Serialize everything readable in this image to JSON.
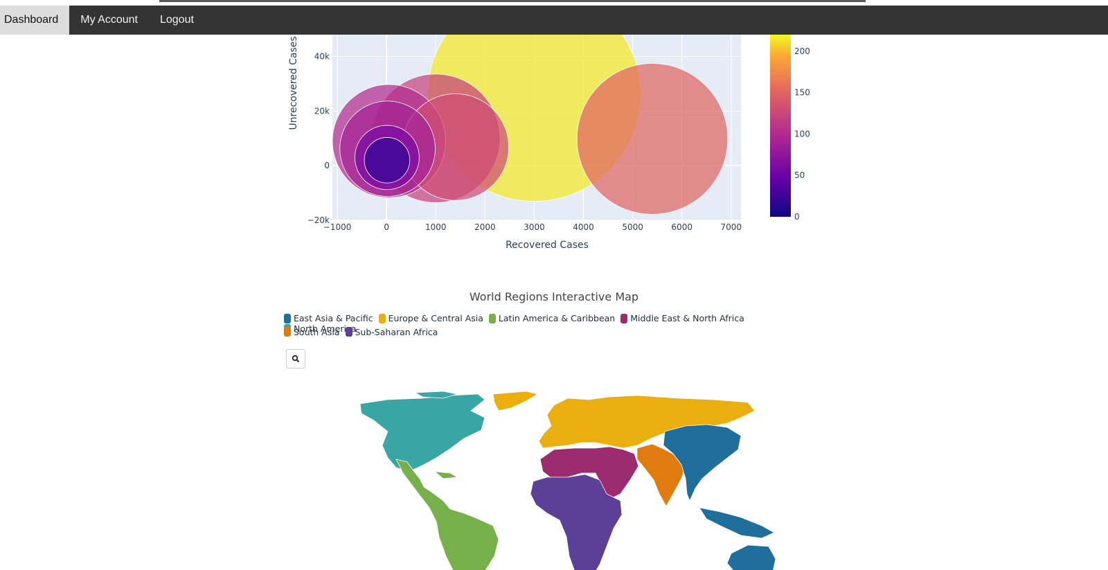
{
  "nav": {
    "items": [
      {
        "label": "Dashboard",
        "active": true
      },
      {
        "label": "My Account",
        "active": false
      },
      {
        "label": "Logout",
        "active": false
      }
    ]
  },
  "colors": {
    "plot_bg": "#e5ecf6",
    "nav_bg": "#333333",
    "regions": {
      "east_asia_pacific": "#1f6e9b",
      "europe_central_asia": "#eaae0f",
      "latin_america_caribbean": "#76b04a",
      "middle_east_north_africa": "#9c2a6e",
      "north_america": "#3aa5a5",
      "south_asia": "#e07b10",
      "sub_saharan_africa": "#5c3f96"
    }
  },
  "chart_data": {
    "type": "scatter",
    "subtype": "bubble",
    "xlabel": "Recovered Cases",
    "ylabel": "Unrecovered Cases",
    "xlim": [
      -1100,
      7200
    ],
    "ylim": [
      -20000,
      48000
    ],
    "x_ticks": [
      -1000,
      0,
      1000,
      2000,
      3000,
      4000,
      5000,
      6000,
      7000
    ],
    "x_tick_labels": [
      "−1000",
      "0",
      "1000",
      "2000",
      "3000",
      "4000",
      "5000",
      "6000",
      "7000"
    ],
    "y_ticks": [
      -20000,
      0,
      20000,
      40000
    ],
    "y_tick_labels": [
      "−20k",
      "0",
      "20k",
      "40k"
    ],
    "grid": true,
    "colorbar": {
      "min": 0,
      "max": 220,
      "ticks": [
        0,
        50,
        100,
        150,
        200
      ],
      "tick_labels": [
        "0",
        "50",
        "100",
        "150",
        "200"
      ]
    },
    "points": [
      {
        "x": 3000,
        "y": 26000,
        "size_value": 220,
        "color_value": 215
      },
      {
        "x": 5400,
        "y": 9800,
        "size_value": 110,
        "color_value": 150
      },
      {
        "x": 1000,
        "y": 10000,
        "size_value": 80,
        "color_value": 120
      },
      {
        "x": 1400,
        "y": 6800,
        "size_value": 55,
        "color_value": 130
      },
      {
        "x": 50,
        "y": 9000,
        "size_value": 62,
        "color_value": 100
      },
      {
        "x": 20,
        "y": 6200,
        "size_value": 44,
        "color_value": 90
      },
      {
        "x": 10,
        "y": 3000,
        "size_value": 20,
        "color_value": 60
      },
      {
        "x": 10,
        "y": 2000,
        "size_value": 10,
        "color_value": 20
      }
    ]
  },
  "map": {
    "title": "World Regions Interactive Map",
    "legend": [
      {
        "label": "East Asia & Pacific",
        "color": "#1f6e9b"
      },
      {
        "label": "Europe & Central Asia",
        "color": "#eaae0f"
      },
      {
        "label": "Latin America & Caribbean",
        "color": "#76b04a"
      },
      {
        "label": "Middle East & North Africa",
        "color": "#9c2a6e"
      },
      {
        "label": "North America",
        "color": "#3aa5a5"
      },
      {
        "label": "South Asia",
        "color": "#e07b10"
      },
      {
        "label": "Sub-Saharan Africa",
        "color": "#5c3f96"
      }
    ],
    "search_icon": "search-icon"
  }
}
